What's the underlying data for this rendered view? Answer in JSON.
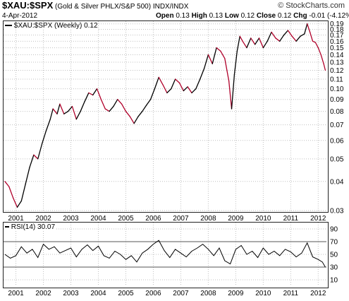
{
  "header": {
    "symbol": "$XAU:$SPX",
    "name": "(Gold & Silver PHLX/S&P 500)",
    "exchange": "INDX/INDX",
    "date": "4-Apr-2012",
    "open_label": "Open",
    "open": "0.13",
    "high_label": "High",
    "high": "0.13",
    "low_label": "Low",
    "low": "0.12",
    "close_label": "Close",
    "close": "0.12",
    "chg_label": "Chg",
    "chg": "-0.01 (-4.12%)",
    "watermark": "© StockCharts.com"
  },
  "colors": {
    "price_up": "#000000",
    "price_down": "#b0002a",
    "grid": "#c0c0c0",
    "rsi_line": "#000000"
  },
  "chart_data": [
    {
      "type": "line",
      "legend": "$XAU:$SPX (Weekly) 0.12",
      "y_scale": "log",
      "ylim": [
        0.03,
        0.195
      ],
      "yticks": [
        0.03,
        0.04,
        0.05,
        0.06,
        0.07,
        0.08,
        0.09,
        0.1,
        0.11,
        0.12,
        0.13,
        0.14,
        0.15,
        0.16,
        0.17,
        0.18,
        0.19
      ],
      "ytick_labels": [
        "0.03",
        "0.04",
        "0.05",
        "0.06",
        "0.07",
        "0.08",
        "0.09",
        "0.10",
        "0.11",
        "0.12",
        "0.13",
        "0.14",
        "0.15",
        "0.16",
        "0.17",
        "0.18",
        "0.19"
      ],
      "xlim": [
        2000.55,
        2012.3
      ],
      "xtick_labels": [
        "2001",
        "2002",
        "2003",
        "2004",
        "2005",
        "2006",
        "2007",
        "2008",
        "2009",
        "2010",
        "2011",
        "2012"
      ],
      "grid": true,
      "series": [
        {
          "x": [
            2000.6,
            2000.75,
            2000.9,
            2001.05,
            2001.2,
            2001.35,
            2001.5,
            2001.65,
            2001.8,
            2001.95,
            2002.1,
            2002.25,
            2002.35,
            2002.5,
            2002.6,
            2002.75,
            2002.9,
            2003.05,
            2003.2,
            2003.35,
            2003.5,
            2003.65,
            2003.8,
            2003.95,
            2004.1,
            2004.25,
            2004.4,
            2004.55,
            2004.7,
            2004.85,
            2005.0,
            2005.15,
            2005.3,
            2005.45,
            2005.6,
            2005.75,
            2005.9,
            2006.05,
            2006.2,
            2006.35,
            2006.5,
            2006.65,
            2006.8,
            2006.95,
            2007.1,
            2007.25,
            2007.4,
            2007.55,
            2007.7,
            2007.85,
            2008.0,
            2008.15,
            2008.3,
            2008.45,
            2008.6,
            2008.75,
            2008.85,
            2008.95,
            2009.05,
            2009.15,
            2009.25,
            2009.4,
            2009.55,
            2009.7,
            2009.85,
            2010.0,
            2010.15,
            2010.3,
            2010.45,
            2010.6,
            2010.75,
            2010.9,
            2011.05,
            2011.2,
            2011.35,
            2011.5,
            2011.6,
            2011.7,
            2011.8,
            2011.9,
            2012.0,
            2012.1,
            2012.2,
            2012.26
          ],
          "y": [
            0.04,
            0.038,
            0.034,
            0.031,
            0.033,
            0.039,
            0.046,
            0.052,
            0.05,
            0.058,
            0.066,
            0.074,
            0.082,
            0.078,
            0.086,
            0.078,
            0.08,
            0.084,
            0.074,
            0.08,
            0.088,
            0.096,
            0.094,
            0.1,
            0.09,
            0.082,
            0.08,
            0.084,
            0.09,
            0.086,
            0.08,
            0.076,
            0.071,
            0.076,
            0.08,
            0.085,
            0.09,
            0.1,
            0.112,
            0.104,
            0.096,
            0.1,
            0.11,
            0.106,
            0.098,
            0.102,
            0.096,
            0.1,
            0.11,
            0.122,
            0.14,
            0.128,
            0.15,
            0.145,
            0.135,
            0.108,
            0.082,
            0.115,
            0.145,
            0.168,
            0.16,
            0.15,
            0.165,
            0.155,
            0.165,
            0.15,
            0.16,
            0.175,
            0.165,
            0.16,
            0.17,
            0.178,
            0.168,
            0.16,
            0.168,
            0.172,
            0.19,
            0.175,
            0.16,
            0.158,
            0.15,
            0.14,
            0.128,
            0.12
          ]
        }
      ]
    },
    {
      "type": "line",
      "legend": "RSI(14) 30.07",
      "ylim": [
        0,
        100
      ],
      "yticks": [
        10,
        30,
        50,
        70,
        90
      ],
      "ytick_labels": [
        "10",
        "30",
        "50",
        "70",
        "90"
      ],
      "ref_lines": [
        30,
        70
      ],
      "xlim": [
        2000.55,
        2012.3
      ],
      "xtick_labels": [
        "2001",
        "2002",
        "2003",
        "2004",
        "2005",
        "2006",
        "2007",
        "2008",
        "2009",
        "2010",
        "2011",
        "2012"
      ],
      "grid": true,
      "series": [
        {
          "x": [
            2000.6,
            2000.8,
            2001.0,
            2001.2,
            2001.4,
            2001.6,
            2001.8,
            2002.0,
            2002.2,
            2002.4,
            2002.6,
            2002.8,
            2003.0,
            2003.2,
            2003.4,
            2003.6,
            2003.8,
            2004.0,
            2004.2,
            2004.4,
            2004.6,
            2004.8,
            2005.0,
            2005.2,
            2005.4,
            2005.6,
            2005.8,
            2006.0,
            2006.2,
            2006.4,
            2006.6,
            2006.8,
            2007.0,
            2007.2,
            2007.4,
            2007.6,
            2007.8,
            2008.0,
            2008.2,
            2008.4,
            2008.6,
            2008.8,
            2009.0,
            2009.2,
            2009.4,
            2009.6,
            2009.8,
            2010.0,
            2010.2,
            2010.4,
            2010.6,
            2010.8,
            2011.0,
            2011.2,
            2011.4,
            2011.6,
            2011.8,
            2012.0,
            2012.15,
            2012.26
          ],
          "y": [
            50,
            44,
            48,
            62,
            52,
            58,
            45,
            66,
            58,
            62,
            52,
            56,
            60,
            46,
            58,
            65,
            56,
            63,
            48,
            44,
            55,
            50,
            42,
            48,
            38,
            52,
            58,
            66,
            72,
            56,
            45,
            58,
            52,
            46,
            55,
            60,
            66,
            58,
            48,
            60,
            40,
            35,
            58,
            64,
            50,
            55,
            45,
            60,
            50,
            55,
            48,
            58,
            54,
            46,
            52,
            68,
            46,
            42,
            38,
            30
          ]
        }
      ]
    }
  ]
}
